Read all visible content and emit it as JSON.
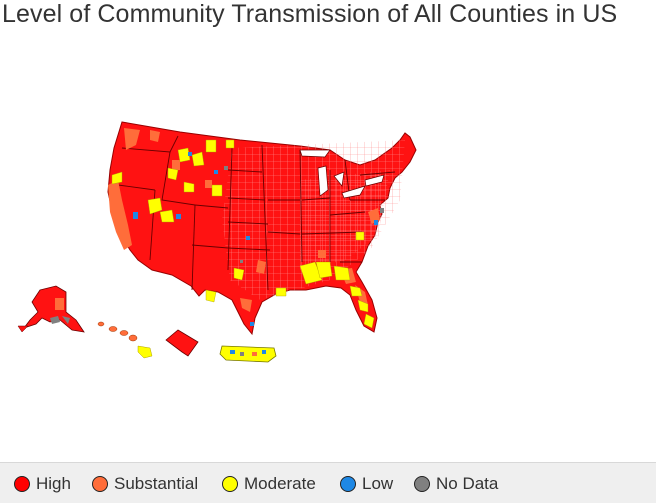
{
  "title": "Level of Community Transmission of All Counties in US",
  "legend": {
    "items": [
      {
        "label": "High",
        "color": "#ff0000"
      },
      {
        "label": "Substantial",
        "color": "#ff6d3a"
      },
      {
        "label": "Moderate",
        "color": "#ffff00"
      },
      {
        "label": "Low",
        "color": "#1e88e5"
      },
      {
        "label": "No Data",
        "color": "#808080"
      }
    ]
  }
}
